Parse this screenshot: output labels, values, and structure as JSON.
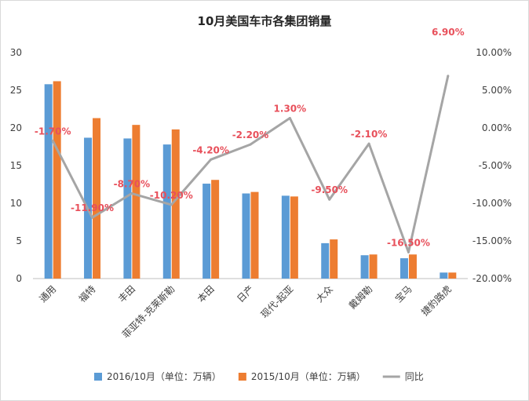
{
  "chart_data": {
    "type": "bar",
    "title": "10月美国车市各集团销量",
    "categories": [
      "通用",
      "福特",
      "丰田",
      "菲亚特-克莱斯勒",
      "本田",
      "日产",
      "现代-起亚",
      "大众",
      "戴姆勒",
      "宝马",
      "捷豹路虎"
    ],
    "series": [
      {
        "name": "2016/10月（单位：万辆）",
        "kind": "bar",
        "axis": "left",
        "color": "#5b9bd5",
        "values": [
          25.8,
          18.7,
          18.6,
          17.8,
          12.6,
          11.3,
          11.0,
          4.7,
          3.1,
          2.7,
          0.8
        ]
      },
      {
        "name": "2015/10月（单位：万辆）",
        "kind": "bar",
        "axis": "left",
        "color": "#ed7d31",
        "values": [
          26.2,
          21.3,
          20.4,
          19.8,
          13.1,
          11.5,
          10.9,
          5.2,
          3.2,
          3.2,
          0.8
        ]
      },
      {
        "name": "同比",
        "kind": "line",
        "axis": "right",
        "color": "#a5a5a5",
        "values": [
          -1.7,
          -11.9,
          -8.7,
          -10.2,
          -4.2,
          -2.2,
          1.3,
          -9.5,
          -2.1,
          -16.5,
          6.9
        ],
        "labels": [
          "-1.70%",
          "-11.90%",
          "-8.70%",
          "-10.20%",
          "-4.20%",
          "-2.20%",
          "1.30%",
          "-9.50%",
          "-2.10%",
          "-16.50%",
          "6.90%"
        ]
      }
    ],
    "y_left": {
      "min": 0,
      "max": 30,
      "ticks": [
        "0",
        "5",
        "10",
        "15",
        "20",
        "25",
        "30"
      ]
    },
    "y_right": {
      "min": -20,
      "max": 10,
      "ticks": [
        "-20.00%",
        "-15.00%",
        "-10.00%",
        "-5.00%",
        "0.00%",
        "5.00%",
        "10.00%"
      ]
    },
    "grid": false,
    "legend_position": "bottom",
    "label_color": "#e8505b"
  }
}
